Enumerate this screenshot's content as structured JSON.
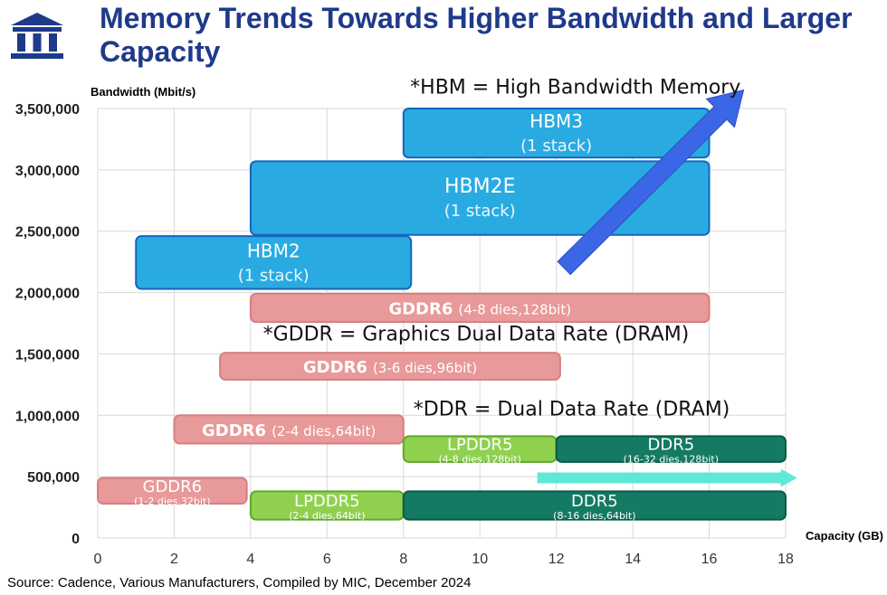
{
  "title": "Memory Trends Towards Higher Bandwidth and Larger Capacity",
  "source": "Source: Cadence, Various Manufacturers, Compiled by MIC, December 2024",
  "colors": {
    "title": "#1f3a8a",
    "hbm_fill": "#29abe2",
    "hbm_stroke": "#1565c0",
    "gddr_fill": "#e8999a",
    "gddr_stroke": "#d77f80",
    "lpddr_fill": "#8fd14f",
    "lpddr_stroke": "#5fa82a",
    "ddr_fill": "#147a63",
    "ddr_stroke": "#0b5a47",
    "arrow_blue": "#3b66e6",
    "arrow_cyan": "#5ee8d8"
  },
  "chart_data": {
    "type": "bar",
    "ylabel": "Bandwidth (Mbit/s)",
    "xlabel": "Capacity (GB)",
    "xlim": [
      0,
      18
    ],
    "ylim": [
      0,
      3500000
    ],
    "xticks": [
      "0",
      "2",
      "4",
      "6",
      "8",
      "10",
      "12",
      "14",
      "16",
      "18"
    ],
    "yticks": [
      "0",
      "500,000",
      "1,000,000",
      "1,500,000",
      "2,000,000",
      "2,500,000",
      "3,000,000",
      "3,500,000"
    ],
    "grid": true,
    "boxes": [
      {
        "name": "HBM3",
        "sub": "(1 stack)",
        "family": "hbm",
        "x": [
          8,
          16
        ],
        "y": [
          3100000,
          3500000
        ]
      },
      {
        "name": "HBM2E",
        "sub": "(1 stack)",
        "family": "hbm",
        "x": [
          4,
          16
        ],
        "y": [
          2470000,
          3070000
        ]
      },
      {
        "name": "HBM2",
        "sub": "(1 stack)",
        "family": "hbm",
        "x": [
          1,
          8.2
        ],
        "y": [
          2030000,
          2460000
        ]
      },
      {
        "name": "GDDR6",
        "sub": "(4-8 dies,128bit)",
        "family": "gddr",
        "x": [
          4,
          16
        ],
        "y": [
          1760000,
          1990000
        ]
      },
      {
        "name": "GDDR6",
        "sub": "(3-6 dies,96bit)",
        "family": "gddr",
        "x": [
          3.2,
          12.1
        ],
        "y": [
          1290000,
          1510000
        ]
      },
      {
        "name": "GDDR6",
        "sub": "(2-4 dies,64bit)",
        "family": "gddr",
        "x": [
          2,
          8
        ],
        "y": [
          770000,
          1000000
        ]
      },
      {
        "name": "GDDR6",
        "sub": "(1-2 dies,32bit)",
        "family": "gddr",
        "x": [
          0,
          3.9
        ],
        "y": [
          280000,
          490000
        ]
      },
      {
        "name": "LPDDR5",
        "sub": "(4-8 dies,128bit)",
        "family": "lpddr",
        "x": [
          8,
          12
        ],
        "y": [
          620000,
          830000
        ]
      },
      {
        "name": "DDR5",
        "sub": "(16-32 dies,128bit)",
        "family": "ddr",
        "x": [
          12,
          18
        ],
        "y": [
          620000,
          830000
        ]
      },
      {
        "name": "LPDDR5",
        "sub": "(2-4 dies,64bit)",
        "family": "lpddr",
        "x": [
          4,
          8
        ],
        "y": [
          150000,
          380000
        ]
      },
      {
        "name": "DDR5",
        "sub": "(8-16 dies,64bit)",
        "family": "ddr",
        "x": [
          8,
          18
        ],
        "y": [
          150000,
          380000
        ]
      }
    ],
    "annotations": [
      {
        "text": "*HBM = High Bandwidth Memory",
        "x": 12.5,
        "y": 3620000
      },
      {
        "text": "*GDDR = Graphics Dual Data Rate (DRAM)",
        "x": 9.9,
        "y": 1610000
      },
      {
        "text": "*DDR = Dual Data Rate (DRAM)",
        "x": 12.4,
        "y": 1000000
      }
    ],
    "arrows": [
      {
        "name": "trend-arrow-hbm",
        "from": [
          12.2,
          2200000
        ],
        "to": [
          16.9,
          3650000
        ],
        "color": "arrow_blue"
      },
      {
        "name": "trend-arrow-ddr",
        "from": [
          11.5,
          490000
        ],
        "to": [
          18.3,
          490000
        ],
        "color": "arrow_cyan"
      }
    ]
  }
}
